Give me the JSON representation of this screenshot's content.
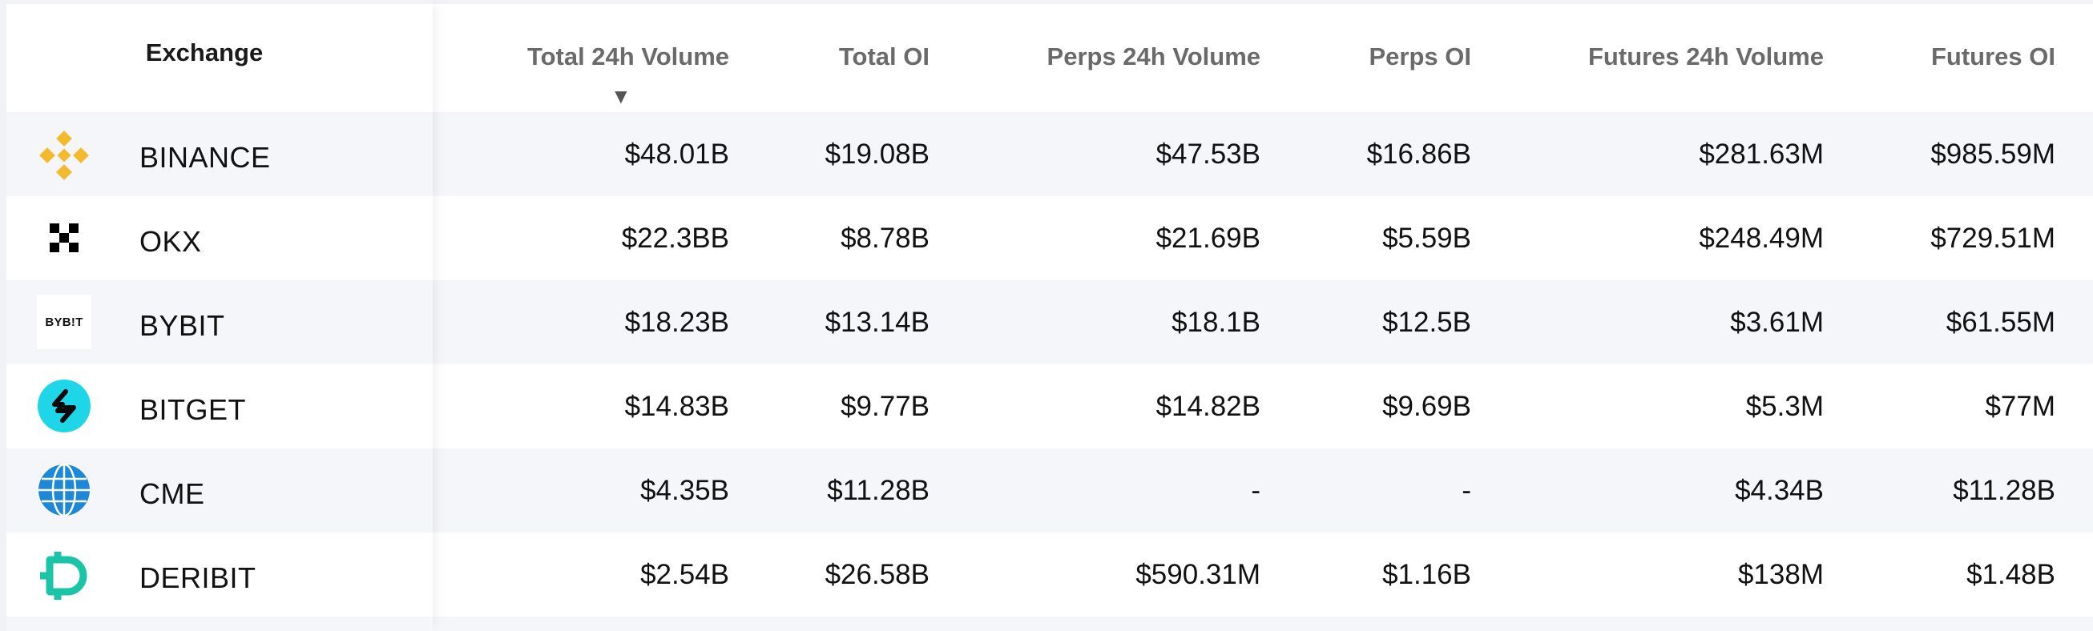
{
  "columns": {
    "exchange": "Exchange",
    "total_volume": "Total 24h Volume",
    "total_oi": "Total OI",
    "perps_volume": "Perps 24h Volume",
    "perps_oi": "Perps OI",
    "futures_volume": "Futures 24h Volume",
    "futures_oi": "Futures OI",
    "sort_indicator": "▼"
  },
  "rows": [
    {
      "exchange": "BINANCE",
      "icon": "binance-logo-icon",
      "total_volume": "$48.01B",
      "total_oi": "$19.08B",
      "perps_volume": "$47.53B",
      "perps_oi": "$16.86B",
      "futures_volume": "$281.63M",
      "futures_oi": "$985.59M"
    },
    {
      "exchange": "OKX",
      "icon": "okx-logo-icon",
      "total_volume": "$22.3BB",
      "total_oi": "$8.78B",
      "perps_volume": "$21.69B",
      "perps_oi": "$5.59B",
      "futures_volume": "$248.49M",
      "futures_oi": "$729.51M"
    },
    {
      "exchange": "BYBIT",
      "icon": "bybit-logo-icon",
      "total_volume": "$18.23B",
      "total_oi": "$13.14B",
      "perps_volume": "$18.1B",
      "perps_oi": "$12.5B",
      "futures_volume": "$3.61M",
      "futures_oi": "$61.55M"
    },
    {
      "exchange": "BITGET",
      "icon": "bitget-logo-icon",
      "total_volume": "$14.83B",
      "total_oi": "$9.77B",
      "perps_volume": "$14.82B",
      "perps_oi": "$9.69B",
      "futures_volume": "$5.3M",
      "futures_oi": "$77M"
    },
    {
      "exchange": "CME",
      "icon": "cme-globe-logo-icon",
      "total_volume": "$4.35B",
      "total_oi": "$11.28B",
      "perps_volume": "-",
      "perps_oi": "-",
      "futures_volume": "$4.34B",
      "futures_oi": "$11.28B"
    },
    {
      "exchange": "DERIBIT",
      "icon": "deribit-logo-icon",
      "total_volume": "$2.54B",
      "total_oi": "$26.58B",
      "perps_volume": "$590.31M",
      "perps_oi": "$1.16B",
      "futures_volume": "$138M",
      "futures_oi": "$1.48B"
    }
  ],
  "logos": {
    "bybit_text": "BYB!T"
  },
  "colors": {
    "binance": "#F3BA2F",
    "bitget": "#1ED6E8",
    "cme": "#1E88D8",
    "deribit": "#1BC4A6",
    "row_alt": "#f5f6f9",
    "header_text": "#6a6a6a"
  }
}
